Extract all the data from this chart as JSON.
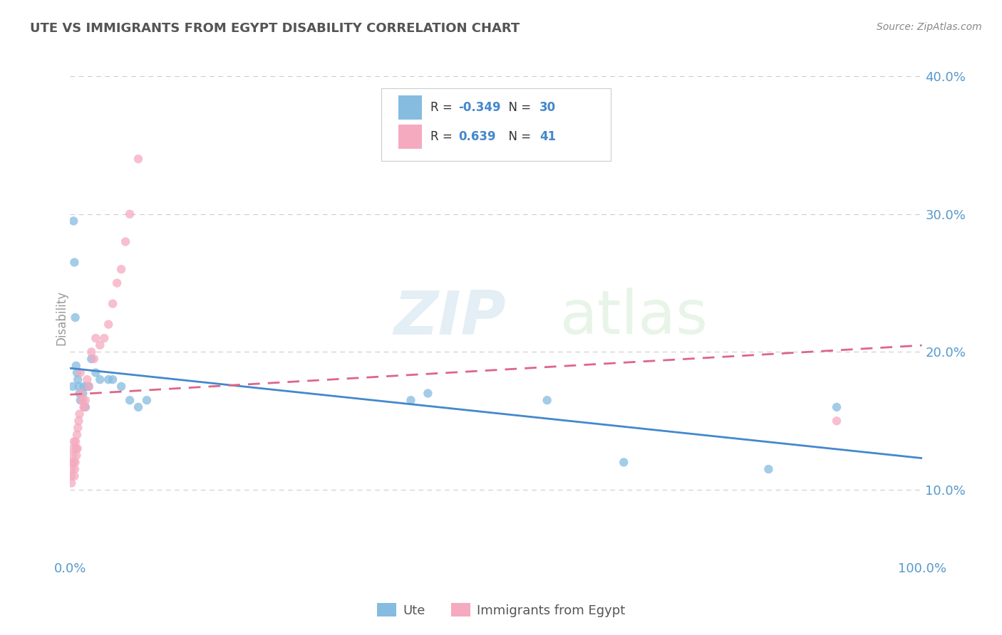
{
  "title": "UTE VS IMMIGRANTS FROM EGYPT DISABILITY CORRELATION CHART",
  "source": "Source: ZipAtlas.com",
  "ylabel": "Disability",
  "ute_R": -0.349,
  "ute_N": 30,
  "egypt_R": 0.639,
  "egypt_N": 41,
  "ute_color": "#85bce0",
  "egypt_color": "#f5aabf",
  "ute_line_color": "#4488cc",
  "egypt_line_color": "#dd6688",
  "watermark_zip": "ZIP",
  "watermark_atlas": "atlas",
  "title_color": "#555555",
  "grid_color": "#cccccc",
  "ute_points": [
    [
      0.3,
      17.5
    ],
    [
      0.4,
      29.5
    ],
    [
      0.5,
      26.5
    ],
    [
      0.6,
      22.5
    ],
    [
      0.7,
      19.0
    ],
    [
      0.8,
      18.5
    ],
    [
      0.9,
      18.0
    ],
    [
      1.0,
      17.5
    ],
    [
      1.1,
      17.0
    ],
    [
      1.2,
      16.5
    ],
    [
      1.5,
      17.0
    ],
    [
      1.6,
      17.5
    ],
    [
      1.8,
      16.0
    ],
    [
      2.0,
      17.5
    ],
    [
      2.2,
      17.5
    ],
    [
      2.5,
      19.5
    ],
    [
      3.0,
      18.5
    ],
    [
      3.5,
      18.0
    ],
    [
      4.5,
      18.0
    ],
    [
      5.0,
      18.0
    ],
    [
      6.0,
      17.5
    ],
    [
      7.0,
      16.5
    ],
    [
      8.0,
      16.0
    ],
    [
      9.0,
      16.5
    ],
    [
      40.0,
      16.5
    ],
    [
      42.0,
      17.0
    ],
    [
      56.0,
      16.5
    ],
    [
      65.0,
      12.0
    ],
    [
      82.0,
      11.5
    ],
    [
      90.0,
      16.0
    ]
  ],
  "egypt_points": [
    [
      0.1,
      11.0
    ],
    [
      0.15,
      10.5
    ],
    [
      0.2,
      11.5
    ],
    [
      0.25,
      12.0
    ],
    [
      0.3,
      12.5
    ],
    [
      0.35,
      13.0
    ],
    [
      0.4,
      12.0
    ],
    [
      0.45,
      13.5
    ],
    [
      0.5,
      11.0
    ],
    [
      0.55,
      11.5
    ],
    [
      0.6,
      12.0
    ],
    [
      0.65,
      13.5
    ],
    [
      0.7,
      13.0
    ],
    [
      0.75,
      12.5
    ],
    [
      0.8,
      14.0
    ],
    [
      0.85,
      13.0
    ],
    [
      0.9,
      14.5
    ],
    [
      1.0,
      15.0
    ],
    [
      1.1,
      15.5
    ],
    [
      1.2,
      18.5
    ],
    [
      1.3,
      17.0
    ],
    [
      1.4,
      16.5
    ],
    [
      1.5,
      16.5
    ],
    [
      1.6,
      16.0
    ],
    [
      1.7,
      16.0
    ],
    [
      1.8,
      16.5
    ],
    [
      2.0,
      18.0
    ],
    [
      2.2,
      17.5
    ],
    [
      2.5,
      20.0
    ],
    [
      2.8,
      19.5
    ],
    [
      3.0,
      21.0
    ],
    [
      3.5,
      20.5
    ],
    [
      4.0,
      21.0
    ],
    [
      4.5,
      22.0
    ],
    [
      5.0,
      23.5
    ],
    [
      5.5,
      25.0
    ],
    [
      6.0,
      26.0
    ],
    [
      6.5,
      28.0
    ],
    [
      7.0,
      30.0
    ],
    [
      8.0,
      34.0
    ],
    [
      90.0,
      15.0
    ]
  ],
  "xmin": 0.0,
  "xmax": 100.0,
  "ymin": 5.0,
  "ymax": 40.0,
  "yticks": [
    10.0,
    20.0,
    30.0,
    40.0
  ],
  "ytick_labels": [
    "10.0%",
    "20.0%",
    "30.0%",
    "40.0%"
  ],
  "xticks": [
    0.0,
    100.0
  ],
  "xtick_labels": [
    "0.0%",
    "100.0%"
  ],
  "background_color": "#ffffff"
}
